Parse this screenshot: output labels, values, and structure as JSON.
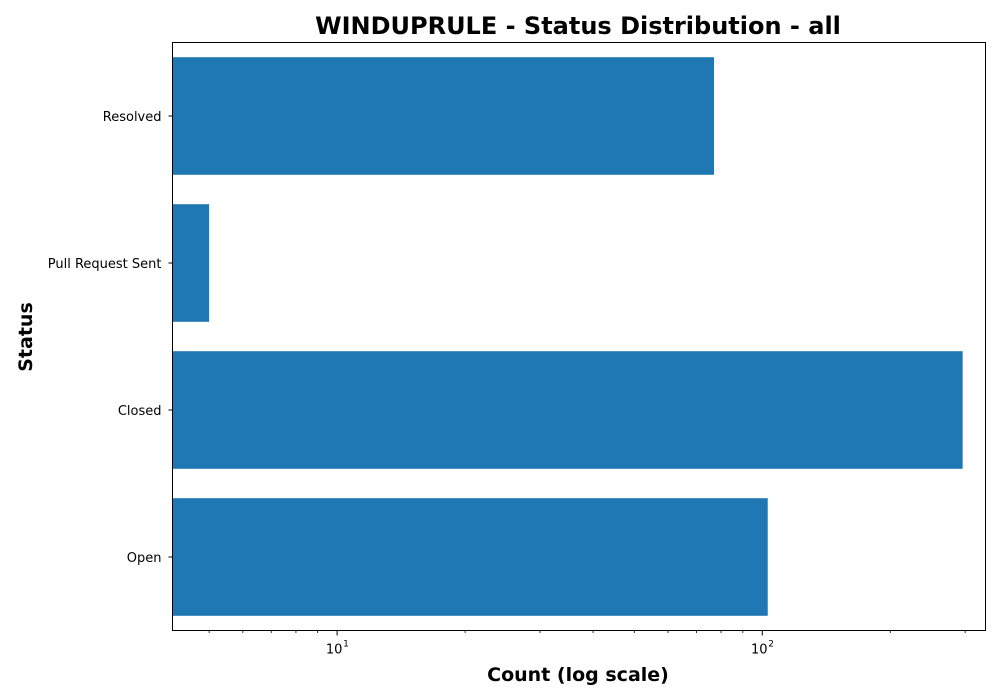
{
  "chart_data": {
    "type": "bar",
    "orientation": "horizontal",
    "title": "WINDUPRULE - Status Distribution - all",
    "xlabel": "Count (log scale)",
    "ylabel": "Status",
    "x_scale": "log",
    "xlim": [
      4.1,
      335
    ],
    "x_ticks": [
      {
        "base": "10",
        "exp": "1"
      },
      {
        "base": "10",
        "exp": "2"
      }
    ],
    "categories": [
      "Open",
      "Closed",
      "Pull Request Sent",
      "Resolved"
    ],
    "values": [
      103,
      296,
      5,
      77
    ],
    "bar_color": "#1f77b4",
    "grid": false,
    "legend": "none"
  }
}
